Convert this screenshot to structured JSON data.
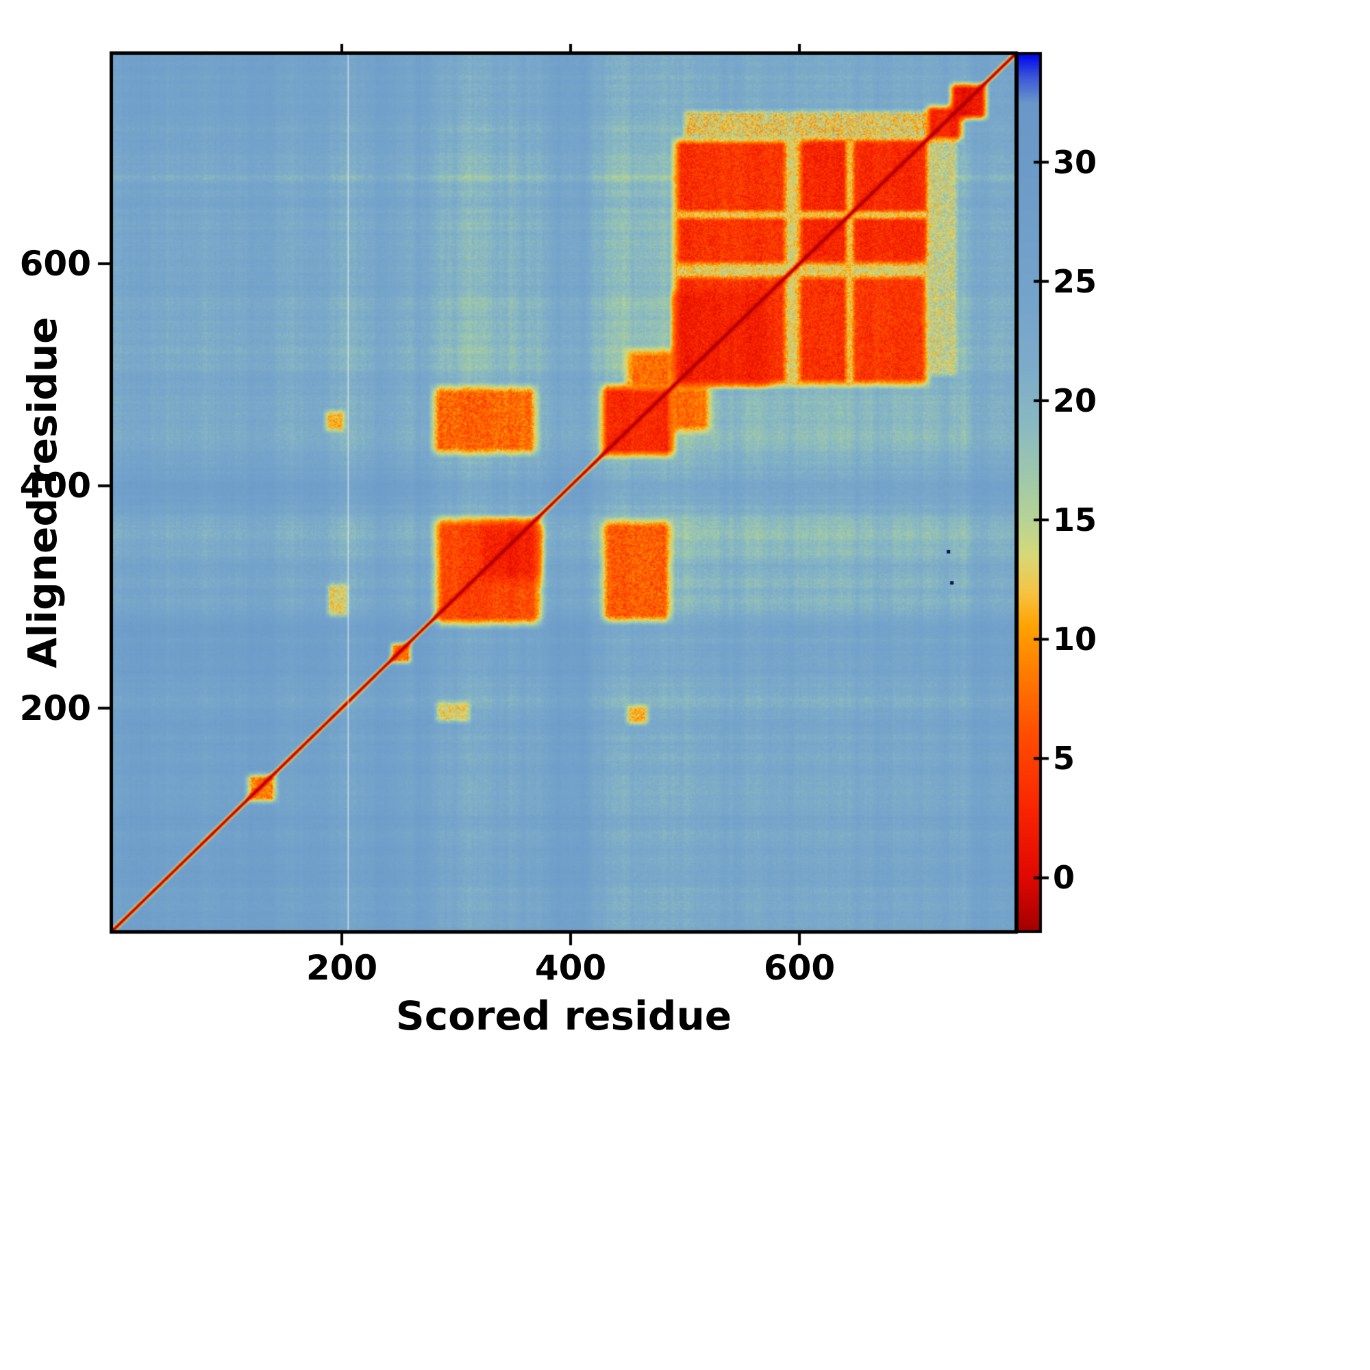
{
  "chart_data": {
    "type": "heatmap",
    "title": "",
    "xlabel": "Scored residue",
    "ylabel": "Aligned residue",
    "x_range": [
      1,
      788
    ],
    "y_range": [
      1,
      788
    ],
    "x_ticks": [
      200,
      400,
      600
    ],
    "y_ticks": [
      200,
      400,
      600
    ],
    "colorbar_ticks": [
      0,
      5,
      10,
      15,
      20,
      25,
      30
    ],
    "colorbar_range": [
      -2.2,
      34.5
    ],
    "grid_size": 788,
    "base_value": 25.3,
    "cell_noise": 2.4,
    "diagonal": {
      "value": -1.5,
      "width": 6
    },
    "white_line_x": 205,
    "colormap": [
      [
        -2.2,
        "#a50000"
      ],
      [
        0,
        "#e00800"
      ],
      [
        3,
        "#fa2600"
      ],
      [
        6,
        "#ff4d00"
      ],
      [
        8.5,
        "#ff7a00"
      ],
      [
        10.5,
        "#ffa200"
      ],
      [
        12,
        "#f5c443"
      ],
      [
        13.5,
        "#d8d878"
      ],
      [
        15,
        "#b7d395"
      ],
      [
        17,
        "#9cc7ad"
      ],
      [
        19,
        "#8ab9c2"
      ],
      [
        21.5,
        "#7cabca"
      ],
      [
        25,
        "#73a2ca"
      ],
      [
        29,
        "#6d9cc9"
      ],
      [
        32.5,
        "#6997c8"
      ],
      [
        33.6,
        "#3a55d8"
      ],
      [
        34.5,
        "#0008f0"
      ]
    ],
    "bands": [
      {
        "range": [
          195,
          215
        ],
        "d": 2.2
      },
      {
        "range": [
          282,
          378
        ],
        "d": 3.2
      },
      {
        "range": [
          425,
          490
        ],
        "d": 3.2
      },
      {
        "range": [
          492,
          712
        ],
        "d": 2.8
      },
      {
        "range": [
          714,
          742
        ],
        "d": 1.6
      }
    ],
    "blocks": [
      {
        "x": [
          283,
          374
        ],
        "y": [
          276,
          370
        ],
        "v": 5,
        "amp": 5,
        "f": 6
      },
      {
        "x": [
          325,
          372
        ],
        "y": [
          316,
          366
        ],
        "v": 1.8,
        "amp": 3.5,
        "f": 8
      },
      {
        "x": [
          429,
          487
        ],
        "y": [
          279,
          368
        ],
        "v": 7,
        "amp": 6,
        "f": 5
      },
      {
        "x": [
          281,
          370
        ],
        "y": [
          430,
          489
        ],
        "v": 7,
        "amp": 6,
        "f": 5
      },
      {
        "x": [
          428,
          490
        ],
        "y": [
          428,
          490
        ],
        "v": 3.5,
        "amp": 4,
        "f": 5
      },
      {
        "x": [
          488,
          522
        ],
        "y": [
          450,
          490
        ],
        "v": 8,
        "amp": 5,
        "f": 5
      },
      {
        "x": [
          450,
          490
        ],
        "y": [
          488,
          522
        ],
        "v": 8,
        "amp": 5,
        "f": 5
      },
      {
        "x": [
          492,
          712
        ],
        "y": [
          492,
          712
        ],
        "v": 4,
        "amp": 5,
        "f": 5
      },
      {
        "x": [
          492,
          576
        ],
        "y": [
          492,
          576
        ],
        "v": 2.5,
        "amp": 4,
        "f": 6
      },
      {
        "x": [
          604,
          712
        ],
        "y": [
          604,
          712
        ],
        "v": 3,
        "amp": 4.5,
        "f": 6
      },
      {
        "x": [
          588,
          601
        ],
        "y": [
          492,
          712
        ],
        "v": 13,
        "amp": 6,
        "f": 3
      },
      {
        "x": [
          492,
          712
        ],
        "y": [
          588,
          601
        ],
        "v": 13,
        "amp": 6,
        "f": 3
      },
      {
        "x": [
          641,
          648
        ],
        "y": [
          492,
          712
        ],
        "v": 12,
        "amp": 5,
        "f": 2
      },
      {
        "x": [
          492,
          712
        ],
        "y": [
          641,
          648
        ],
        "v": 12,
        "amp": 5,
        "f": 2
      },
      {
        "x": [
          500,
          712
        ],
        "y": [
          713,
          738
        ],
        "v": 13,
        "amp": 9,
        "f": 3
      },
      {
        "x": [
          713,
          738
        ],
        "y": [
          500,
          712
        ],
        "v": 15,
        "amp": 8,
        "f": 3
      },
      {
        "x": [
          118,
          143
        ],
        "y": [
          116,
          141
        ],
        "v": 8,
        "amp": 6,
        "f": 4
      },
      {
        "x": [
          243,
          261
        ],
        "y": [
          241,
          259
        ],
        "v": 8,
        "amp": 5,
        "f": 3
      },
      {
        "x": [
          712,
          742
        ],
        "y": [
          712,
          742
        ],
        "v": 3,
        "amp": 4,
        "f": 4
      },
      {
        "x": [
          733,
          764
        ],
        "y": [
          731,
          762
        ],
        "v": 2,
        "amp": 3.5,
        "f": 4
      },
      {
        "x": [
          186,
          203
        ],
        "y": [
          450,
          468
        ],
        "v": 11,
        "amp": 5,
        "f": 3
      },
      {
        "x": [
          450,
          468
        ],
        "y": [
          186,
          203
        ],
        "v": 11,
        "amp": 5,
        "f": 3
      },
      {
        "x": [
          283,
          312
        ],
        "y": [
          188,
          206
        ],
        "v": 13,
        "amp": 6,
        "f": 3
      },
      {
        "x": [
          188,
          206
        ],
        "y": [
          283,
          312
        ],
        "v": 13,
        "amp": 6,
        "f": 3
      }
    ],
    "outliers": [
      [
        730,
        341
      ],
      [
        733,
        313
      ]
    ]
  }
}
